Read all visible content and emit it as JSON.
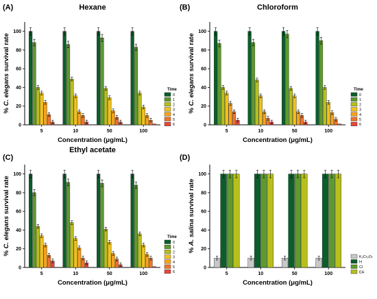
{
  "chart_data": [
    {
      "type": "bar",
      "panel_label": "(A)",
      "title": "Hexane",
      "ylabel_prefix": "% ",
      "ylabel_species": "C. elegans",
      "ylabel_suffix": " survival rate",
      "xlabel": "Concentration (μg/mL)",
      "categories": [
        "5",
        "10",
        "50",
        "100"
      ],
      "ylim": [
        0,
        110
      ],
      "yticks": [
        0,
        20,
        40,
        60,
        80,
        100
      ],
      "legend_title": "Time",
      "legend_position": "right",
      "series": [
        {
          "name": "0",
          "color": "#0b5e2b",
          "values": [
            100,
            100,
            100,
            100
          ]
        },
        {
          "name": "1",
          "color": "#5e9a2c",
          "values": [
            88,
            86,
            93,
            83
          ]
        },
        {
          "name": "2",
          "color": "#b7bf1c",
          "values": [
            40,
            49,
            39,
            34
          ]
        },
        {
          "name": "3",
          "color": "#f2c21a",
          "values": [
            34,
            31,
            29,
            19
          ]
        },
        {
          "name": "4",
          "color": "#f6a21c",
          "values": [
            24,
            14,
            15,
            10
          ]
        },
        {
          "name": "5",
          "color": "#f0742a",
          "values": [
            11,
            10,
            8,
            5
          ]
        },
        {
          "name": "6",
          "color": "#e8473a",
          "values": [
            3,
            3,
            3,
            1
          ]
        }
      ]
    },
    {
      "type": "bar",
      "panel_label": "(B)",
      "title": "Chloroform",
      "ylabel_prefix": "% ",
      "ylabel_species": "C. elegans",
      "ylabel_suffix": " survival rate",
      "xlabel": "Concentration (μg/mL)",
      "categories": [
        "5",
        "10",
        "50",
        "100"
      ],
      "ylim": [
        0,
        110
      ],
      "yticks": [
        0,
        20,
        40,
        60,
        80,
        100
      ],
      "legend_title": "Time",
      "legend_position": "right",
      "series": [
        {
          "name": "0",
          "color": "#0b5e2b",
          "values": [
            100,
            100,
            100,
            100
          ]
        },
        {
          "name": "1",
          "color": "#5e9a2c",
          "values": [
            87,
            88,
            97,
            90
          ]
        },
        {
          "name": "2",
          "color": "#b7bf1c",
          "values": [
            40,
            48,
            39,
            40
          ]
        },
        {
          "name": "3",
          "color": "#f2c21a",
          "values": [
            34,
            31,
            31,
            24
          ]
        },
        {
          "name": "4",
          "color": "#f6a21c",
          "values": [
            23,
            14,
            14,
            13
          ]
        },
        {
          "name": "5",
          "color": "#f0742a",
          "values": [
            14,
            7,
            10,
            6
          ]
        },
        {
          "name": "6",
          "color": "#e8473a",
          "values": [
            5,
            3,
            3,
            1
          ]
        }
      ]
    },
    {
      "type": "bar",
      "panel_label": "(C)",
      "title": "Ethyl acetate",
      "ylabel_prefix": "% ",
      "ylabel_species": "C. elegans",
      "ylabel_suffix": " survival rate",
      "xlabel": "Concentration (μg/mL)",
      "categories": [
        "5",
        "10",
        "50",
        "100"
      ],
      "ylim": [
        0,
        110
      ],
      "yticks": [
        0,
        20,
        40,
        60,
        80,
        100
      ],
      "legend_title": "Time",
      "legend_position": "right",
      "series": [
        {
          "name": "0",
          "color": "#0b5e2b",
          "values": [
            100,
            100,
            100,
            100
          ]
        },
        {
          "name": "1",
          "color": "#5e9a2c",
          "values": [
            80,
            91,
            90,
            88
          ]
        },
        {
          "name": "2",
          "color": "#b7bf1c",
          "values": [
            44,
            48,
            41,
            36
          ]
        },
        {
          "name": "3",
          "color": "#f2c21a",
          "values": [
            34,
            31,
            27,
            24
          ]
        },
        {
          "name": "4",
          "color": "#f6a21c",
          "values": [
            24,
            21,
            15,
            14
          ]
        },
        {
          "name": "5",
          "color": "#f0742a",
          "values": [
            13,
            10,
            9,
            10
          ]
        },
        {
          "name": "6",
          "color": "#e8473a",
          "values": [
            7,
            5,
            3,
            1
          ]
        }
      ]
    },
    {
      "type": "bar",
      "panel_label": "(D)",
      "title": "",
      "ylabel_prefix": "% ",
      "ylabel_species": "A. salina",
      "ylabel_suffix": " survival rate",
      "xlabel": "Concentration (μg/mL)",
      "categories": [
        "5",
        "10",
        "50",
        "100"
      ],
      "ylim": [
        0,
        110
      ],
      "yticks": [
        0,
        20,
        40,
        60,
        80,
        100
      ],
      "legend_title": "",
      "legend_position": "right",
      "series": [
        {
          "name": "K₂Cr₂O₇",
          "color": "#c8c8c8",
          "values": [
            10,
            10,
            10,
            10
          ]
        },
        {
          "name": "H",
          "color": "#0b5e2b",
          "values": [
            100,
            100,
            100,
            100
          ]
        },
        {
          "name": "Cl",
          "color": "#5e9a2c",
          "values": [
            100,
            100,
            100,
            100
          ]
        },
        {
          "name": "EA",
          "color": "#b7bf1c",
          "values": [
            100,
            100,
            100,
            100
          ]
        }
      ]
    }
  ]
}
